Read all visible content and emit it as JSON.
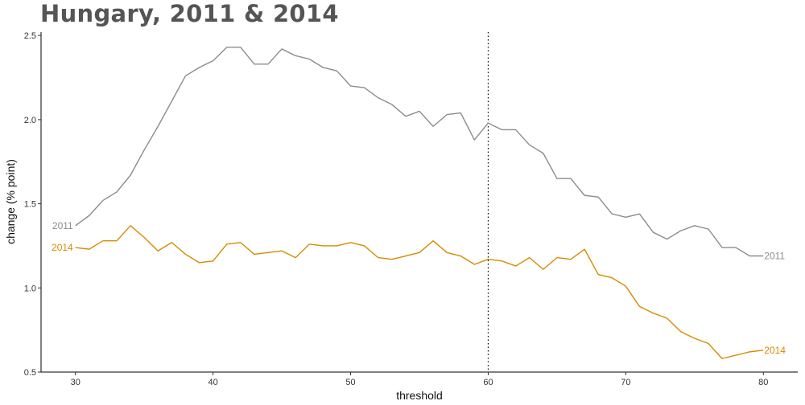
{
  "title": "Hungary, 2011 & 2014",
  "chart_data": {
    "type": "line",
    "title": "Hungary, 2011 & 2014",
    "xlabel": "threshold",
    "ylabel": "change (% point)",
    "xlim": [
      27.5,
      82.5
    ],
    "ylim": [
      0.5,
      2.52
    ],
    "xticks": [
      30,
      40,
      50,
      60,
      70,
      80
    ],
    "yticks": [
      0.5,
      1.0,
      1.5,
      2.0,
      2.5
    ],
    "ytick_labels": [
      "0.5",
      "1.0",
      "1.5",
      "2.0",
      "2.5"
    ],
    "grid": false,
    "reference_line": {
      "x": 60,
      "style": "dotted"
    },
    "x": [
      30,
      31,
      32,
      33,
      34,
      35,
      36,
      37,
      38,
      39,
      40,
      41,
      42,
      43,
      44,
      45,
      46,
      47,
      48,
      49,
      50,
      51,
      52,
      53,
      54,
      55,
      56,
      57,
      58,
      59,
      60,
      61,
      62,
      63,
      64,
      65,
      66,
      67,
      68,
      69,
      70,
      71,
      72,
      73,
      74,
      75,
      76,
      77,
      78,
      79,
      80
    ],
    "series": [
      {
        "name": "2011",
        "color": "#8c8c8c",
        "values": [
          1.37,
          1.43,
          1.52,
          1.57,
          1.67,
          1.82,
          1.96,
          2.11,
          2.26,
          2.31,
          2.35,
          2.43,
          2.43,
          2.33,
          2.33,
          2.42,
          2.38,
          2.36,
          2.31,
          2.29,
          2.2,
          2.19,
          2.13,
          2.09,
          2.02,
          2.05,
          1.96,
          2.03,
          2.04,
          1.88,
          1.98,
          1.94,
          1.94,
          1.85,
          1.8,
          1.65,
          1.65,
          1.55,
          1.54,
          1.44,
          1.42,
          1.44,
          1.33,
          1.29,
          1.34,
          1.37,
          1.35,
          1.24,
          1.24,
          1.19,
          1.19
        ]
      },
      {
        "name": "2014",
        "color": "#d48c00",
        "values": [
          1.24,
          1.23,
          1.28,
          1.28,
          1.37,
          1.3,
          1.22,
          1.27,
          1.2,
          1.15,
          1.16,
          1.26,
          1.27,
          1.2,
          1.21,
          1.22,
          1.18,
          1.26,
          1.25,
          1.25,
          1.27,
          1.25,
          1.18,
          1.17,
          1.19,
          1.21,
          1.28,
          1.21,
          1.19,
          1.14,
          1.17,
          1.16,
          1.13,
          1.18,
          1.11,
          1.18,
          1.17,
          1.23,
          1.08,
          1.06,
          1.01,
          0.89,
          0.85,
          0.82,
          0.74,
          0.7,
          0.67,
          0.58,
          0.6,
          0.62,
          0.63
        ]
      }
    ]
  }
}
